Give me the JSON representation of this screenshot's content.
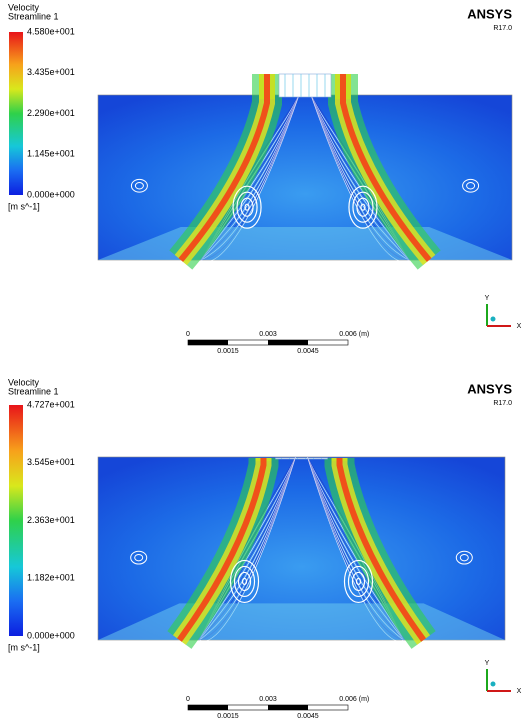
{
  "panels": [
    {
      "legend": {
        "title": [
          "Velocity",
          "Streamline 1"
        ],
        "labels": [
          "4.580e+001",
          "3.435e+001",
          "2.290e+001",
          "1.145e+001",
          "0.000e+000"
        ],
        "unit": "[m s^-1]"
      },
      "logo": {
        "brand": "ANSYS",
        "version": "R17.0"
      },
      "scale": {
        "top": [
          "0",
          "0.003",
          "0.006",
          "(m)"
        ],
        "bottom": [
          "0.0015",
          "0.0045"
        ]
      },
      "triad": {
        "y": "Y",
        "x": "X"
      }
    },
    {
      "legend": {
        "title": [
          "Velocity",
          "Streamline 1"
        ],
        "labels": [
          "4.727e+001",
          "3.545e+001",
          "2.363e+001",
          "1.182e+001",
          "0.000e+000"
        ],
        "unit": "[m s^-1]"
      },
      "logo": {
        "brand": "ANSYS",
        "version": "R17.0"
      },
      "scale": {
        "top": [
          "0",
          "0.003",
          "0.006",
          "(m)"
        ],
        "bottom": [
          "0.0015",
          "0.0045"
        ]
      },
      "triad": {
        "y": "Y",
        "x": "X"
      }
    }
  ]
}
